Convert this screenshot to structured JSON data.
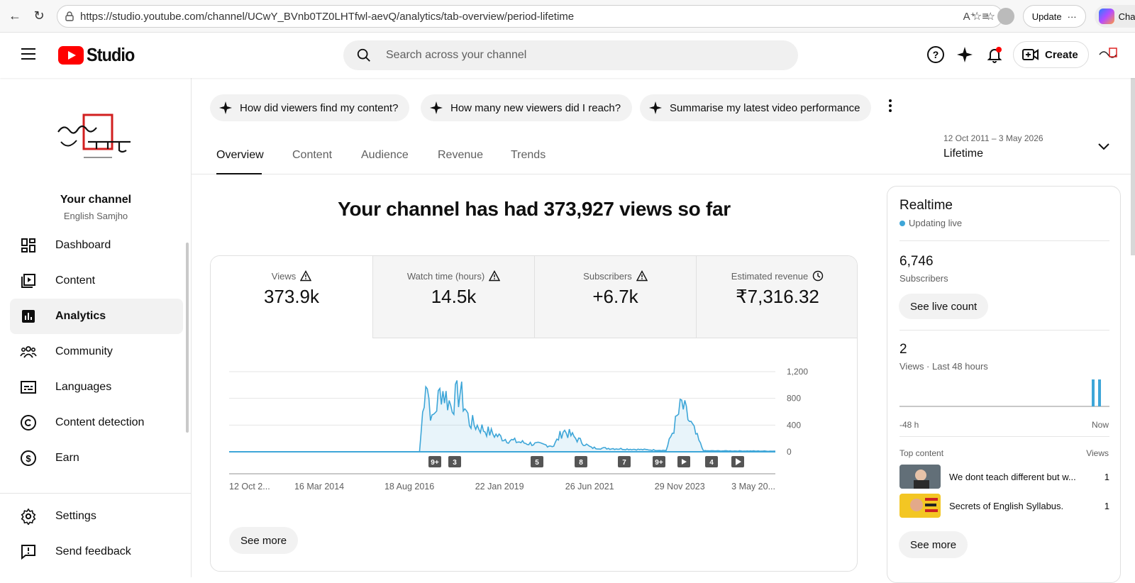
{
  "browser": {
    "url": "https://studio.youtube.com/channel/UCwY_BVnb0TZ0LHTfwl-aevQ/analytics/tab-overview/period-lifetime",
    "update_label": "Update",
    "chat_label": "Chat"
  },
  "header": {
    "logo_text": "Studio",
    "search_placeholder": "Search across your channel",
    "create_label": "Create"
  },
  "sidebar": {
    "channel_title": "Your channel",
    "channel_name": "English Samjho",
    "items": [
      {
        "label": "Dashboard",
        "icon": "dashboard-icon"
      },
      {
        "label": "Content",
        "icon": "content-icon"
      },
      {
        "label": "Analytics",
        "icon": "analytics-icon",
        "active": true
      },
      {
        "label": "Community",
        "icon": "community-icon"
      },
      {
        "label": "Languages",
        "icon": "languages-icon"
      },
      {
        "label": "Content detection",
        "icon": "copyright-icon"
      },
      {
        "label": "Earn",
        "icon": "earn-icon"
      }
    ],
    "bottom_items": [
      {
        "label": "Settings",
        "icon": "settings-icon"
      },
      {
        "label": "Send feedback",
        "icon": "feedback-icon"
      }
    ]
  },
  "chips": [
    "How did viewers find my content?",
    "How many new viewers did I reach?",
    "Summarise my latest video performance"
  ],
  "tabs": [
    "Overview",
    "Content",
    "Audience",
    "Revenue",
    "Trends"
  ],
  "date_range": {
    "range": "12 Oct 2011 – 3 May 2026",
    "label": "Lifetime"
  },
  "headline": "Your channel has had 373,927 views so far",
  "metrics": [
    {
      "label": "Views",
      "value": "373.9k",
      "icon": "warning-icon"
    },
    {
      "label": "Watch time (hours)",
      "value": "14.5k",
      "icon": "warning-icon"
    },
    {
      "label": "Subscribers",
      "value": "+6.7k",
      "icon": "warning-icon"
    },
    {
      "label": "Estimated revenue",
      "value": "₹7,316.32",
      "icon": "clock-icon"
    }
  ],
  "chart_data": {
    "type": "area",
    "y_ticks": [
      "1,200",
      "800",
      "400",
      "0"
    ],
    "ylim": [
      0,
      1200
    ],
    "x_tick_labels": [
      "12 Oct 2...",
      "16 Mar 2014",
      "18 Aug 2016",
      "22 Jan 2019",
      "26 Jun 2021",
      "29 Nov 2023",
      "3 May 20..."
    ],
    "x_range": [
      "2011-10-12",
      "2026-05-03"
    ],
    "series": [
      {
        "values_by_year": [
          {
            "x": "2011-10",
            "y": 0
          },
          {
            "x": "2016-11",
            "y": 0
          },
          {
            "x": "2017-01",
            "y": 1150
          },
          {
            "x": "2017-03",
            "y": 450
          },
          {
            "x": "2017-06",
            "y": 950
          },
          {
            "x": "2017-09",
            "y": 700
          },
          {
            "x": "2017-12",
            "y": 900
          },
          {
            "x": "2018-03",
            "y": 450
          },
          {
            "x": "2018-09",
            "y": 300
          },
          {
            "x": "2019-03",
            "y": 180
          },
          {
            "x": "2019-09",
            "y": 130
          },
          {
            "x": "2020-06",
            "y": 90
          },
          {
            "x": "2020-09",
            "y": 320
          },
          {
            "x": "2021-06",
            "y": 60
          },
          {
            "x": "2022-06",
            "y": 40
          },
          {
            "x": "2023-06",
            "y": 20
          },
          {
            "x": "2023-11",
            "y": 700
          },
          {
            "x": "2024-06",
            "y": 15
          },
          {
            "x": "2026-05",
            "y": 10
          }
        ]
      }
    ],
    "markers": [
      "9+",
      "3",
      "5",
      "8",
      "7",
      "9+",
      "shorts-icon",
      "4",
      "play-icon"
    ],
    "grid": true
  },
  "see_more_label": "See more",
  "realtime": {
    "title": "Realtime",
    "status": "Updating live",
    "subscribers": "6,746",
    "subscribers_label": "Subscribers",
    "live_count_label": "See live count",
    "views": "2",
    "views_label": "Views · Last 48 hours",
    "axis_start": "-48 h",
    "axis_end": "Now",
    "top_content_label": "Top content",
    "views_col_label": "Views",
    "top_content": [
      {
        "title": "We dont teach different but w...",
        "views": "1"
      },
      {
        "title": "Secrets of English Syllabus.",
        "views": "1"
      }
    ],
    "see_more_label": "See more"
  },
  "colors": {
    "accent": "#3ea6d8",
    "youtube_red": "#ff0000"
  }
}
